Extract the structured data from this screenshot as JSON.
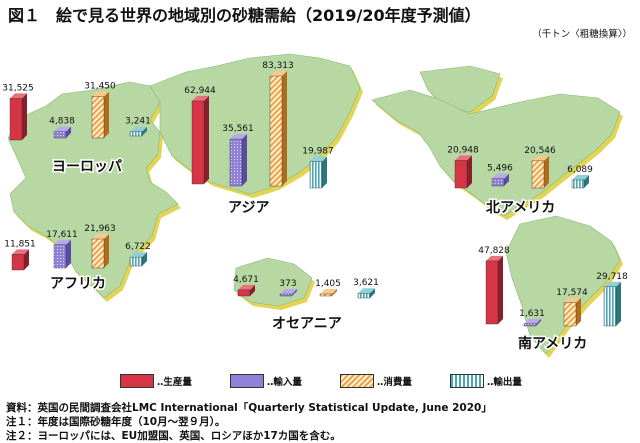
{
  "title": "図１　絵で見る世界の地域別の砂糖需給（2019/20年度予測値）",
  "unit": "（千トン〈粗糖換算〉）",
  "notes": [
    "資料：英国の民間調査会社LMC International「Quarterly Statistical Update, June 2020」",
    "注１：年度は国際砂糖年度（10月～翌９月）。",
    "注２：ヨーロッパには、EU加盟国、英国、ロシアほか17カ国を含む。"
  ],
  "legend": [
    "‥生産量",
    "‥輸入量",
    "‥消費量",
    "‥輸出量"
  ],
  "colors": {
    "production": "#d63545",
    "import": "#8f80d8",
    "consumption": "#f1a341",
    "export": "#49a8b3",
    "land": "#b7d8a3",
    "land_edge": "#e2d454"
  },
  "chart_data": {
    "type": "bar",
    "categories": [
      "生産量",
      "輸入量",
      "消費量",
      "輸出量"
    ],
    "series": [
      {
        "name": "ヨーロッパ",
        "values": [
          31525,
          4838,
          31450,
          3241
        ]
      },
      {
        "name": "アジア",
        "values": [
          62944,
          35561,
          83313,
          19987
        ]
      },
      {
        "name": "北アメリカ",
        "values": [
          20948,
          5496,
          20546,
          6089
        ]
      },
      {
        "name": "アフリカ",
        "values": [
          11851,
          17611,
          21963,
          6722
        ]
      },
      {
        "name": "オセアニア",
        "values": [
          4671,
          373,
          1405,
          3621
        ]
      },
      {
        "name": "南アメリカ",
        "values": [
          47828,
          1631,
          17574,
          29718
        ]
      }
    ]
  }
}
